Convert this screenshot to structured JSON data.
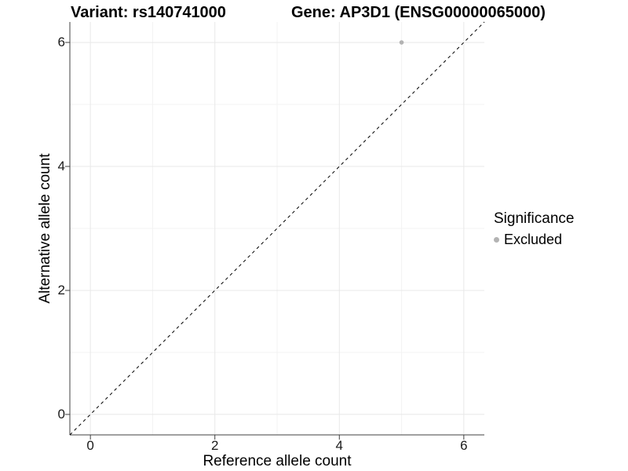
{
  "chart_data": {
    "type": "scatter",
    "title_left": "Variant: rs140741000",
    "title_right": "Gene: AP3D1 (ENSG00000065000)",
    "xlabel": "Reference allele count",
    "ylabel": "Alternative allele count",
    "xlim": [
      -0.33,
      6.33
    ],
    "ylim": [
      -0.33,
      6.33
    ],
    "xticks": [
      0,
      2,
      4,
      6
    ],
    "yticks": [
      0,
      2,
      4,
      6
    ],
    "xminor": [
      1,
      3,
      5
    ],
    "yminor": [
      1,
      3,
      5
    ],
    "grid": true,
    "series": [
      {
        "name": "Excluded",
        "color": "#b3b3b3",
        "points": [
          {
            "x": 5,
            "y": 6
          }
        ]
      }
    ],
    "reference_line": {
      "type": "identity",
      "style": "dashed",
      "from": [
        -0.33,
        -0.33
      ],
      "to": [
        6.33,
        6.33
      ]
    },
    "legend": {
      "title": "Significance",
      "position": "right",
      "items": [
        {
          "label": "Excluded",
          "color": "#b3b3b3",
          "marker": "circle"
        }
      ]
    }
  },
  "colors": {
    "background": "#ffffff",
    "grid_major": "#e8e8e8",
    "grid_minor": "#f3f3f3",
    "axis": "#404040",
    "reference_line": "#000000",
    "point": "#b3b3b3",
    "text": "#000000"
  }
}
